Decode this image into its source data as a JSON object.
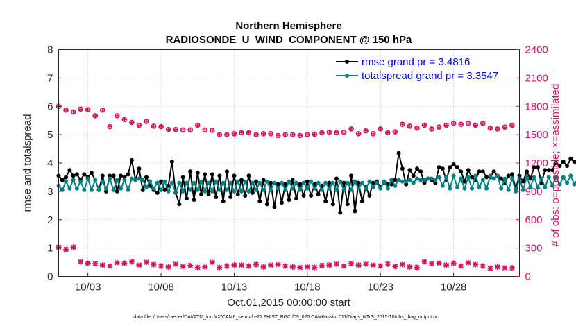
{
  "chart_data": {
    "type": "line",
    "title": "Northern Hemisphere",
    "subtitle": "RADIOSONDE_U_WIND_COMPONENT @ 150 hPa",
    "xlabel": "Oct.01,2015 00:00:00 start",
    "ylabel_left": "rmse and totalspread",
    "ylabel_right": "# of obs: o=possible; ×=assimilated",
    "footnote": "data file: /Users/raeder/DAI/ATM_forcXX/CAM6_setup/f.e21.FHIST_BGC.f09_025.CAM6assim.011/Diags_NTrS_2015-10/obs_diag_output.nc",
    "xlim": [
      1.0,
      32.5
    ],
    "ylim_left": [
      0,
      8
    ],
    "ylim_right": [
      0,
      2400
    ],
    "x_ticks": [
      3,
      8,
      13,
      18,
      23,
      28
    ],
    "x_tick_labels": [
      "10/03",
      "10/08",
      "10/13",
      "10/18",
      "10/23",
      "10/28"
    ],
    "y_ticks_left": [
      "0",
      "1",
      "2",
      "3",
      "4",
      "5",
      "6",
      "7",
      "8"
    ],
    "y_ticks_right": [
      "0",
      "300",
      "600",
      "900",
      "1200",
      "1500",
      "1800",
      "2100",
      "2400"
    ],
    "x_start": 1.0,
    "x_step": 0.25,
    "series": [
      {
        "name": "rmse grand pr = 3.4816",
        "axis": "left",
        "color": "#000000",
        "values": [
          3.55,
          3.4,
          3.5,
          3.75,
          3.55,
          3.6,
          3.4,
          3.6,
          3.5,
          3.65,
          3.4,
          3.05,
          3.55,
          3.0,
          3.55,
          3.55,
          3.0,
          3.55,
          3.5,
          3.6,
          4.1,
          3.4,
          3.8,
          3.05,
          3.5,
          3.2,
          3.05,
          2.95,
          3.35,
          3.05,
          3.2,
          4.05,
          2.95,
          2.55,
          3.5,
          2.75,
          3.7,
          2.7,
          3.65,
          2.9,
          3.6,
          2.9,
          3.6,
          2.8,
          3.55,
          2.65,
          3.7,
          2.8,
          3.55,
          2.9,
          3.4,
          2.85,
          3.55,
          2.95,
          3.35,
          2.65,
          3.4,
          2.55,
          3.3,
          2.45,
          3.25,
          2.6,
          3.25,
          2.7,
          3.4,
          2.75,
          3.25,
          2.85,
          3.35,
          2.85,
          3.25,
          2.9,
          3.2,
          2.65,
          3.3,
          2.55,
          3.45,
          2.25,
          3.3,
          2.55,
          3.55,
          2.3,
          3.3,
          2.65,
          3.15,
          2.85,
          3.3,
          3.35,
          3.15,
          3.3,
          3.25,
          3.25,
          3.4,
          4.35,
          3.8,
          3.25,
          3.75,
          3.55,
          3.8,
          3.7,
          3.3,
          3.45,
          3.4,
          3.3,
          3.85,
          3.8,
          3.4,
          3.85,
          3.95,
          3.85,
          3.7,
          3.35,
          3.75,
          3.5,
          3.4,
          3.7,
          3.7,
          3.5,
          3.5,
          3.7,
          3.55,
          3.45,
          3.3,
          3.55,
          3.6,
          3.1,
          3.55,
          3.35,
          3.7,
          3.45,
          3.85,
          3.85,
          3.3,
          3.75,
          3.75,
          3.75,
          4.0,
          3.9,
          4.05,
          3.9,
          4.15,
          4.05,
          3.95
        ]
      },
      {
        "name": "totalspread grand pr = 3.3547",
        "axis": "left",
        "color": "#008080",
        "values": [
          3.2,
          3.05,
          3.35,
          3.1,
          3.4,
          3.1,
          3.35,
          3.05,
          3.45,
          3.05,
          3.4,
          3.05,
          3.35,
          3.1,
          3.45,
          3.05,
          3.4,
          3.1,
          3.4,
          3.05,
          3.45,
          3.4,
          3.45,
          3.4,
          3.15,
          3.35,
          3.1,
          3.3,
          3.05,
          3.35,
          3.0,
          3.3,
          2.95,
          3.3,
          3.0,
          3.3,
          3.05,
          3.3,
          3.05,
          3.35,
          3.0,
          3.3,
          3.0,
          3.35,
          3.05,
          3.3,
          3.05,
          3.3,
          3.0,
          3.35,
          3.0,
          3.35,
          3.0,
          3.3,
          3.05,
          3.3,
          3.05,
          3.35,
          3.05,
          3.3,
          3.1,
          3.3,
          3.05,
          3.35,
          3.1,
          3.3,
          3.05,
          3.3,
          3.1,
          3.35,
          3.1,
          3.3,
          3.05,
          3.3,
          3.1,
          3.3,
          3.05,
          3.35,
          3.05,
          3.3,
          3.05,
          3.35,
          3.1,
          3.3,
          3.1,
          3.35,
          3.15,
          3.3,
          3.1,
          3.35,
          3.1,
          3.4,
          3.2,
          3.4,
          3.35,
          3.35,
          3.4,
          3.3,
          3.45,
          3.4,
          3.4,
          3.45,
          3.45,
          3.4,
          3.5,
          3.2,
          3.5,
          3.1,
          3.55,
          3.15,
          3.45,
          3.1,
          3.5,
          3.1,
          3.55,
          3.15,
          3.4,
          3.1,
          3.55,
          3.45,
          3.55,
          3.1,
          3.45,
          3.05,
          3.45,
          3.0,
          3.45,
          3.05,
          3.5,
          3.15,
          3.5,
          3.15,
          3.45,
          3.15,
          3.5,
          3.2,
          3.5,
          3.25,
          3.5,
          3.3,
          3.55,
          3.25,
          3.45
        ]
      },
      {
        "name": "possible",
        "axis": "right",
        "marker": "o",
        "color": "#d6135a",
        "x": [
          1.0,
          1.5,
          2.0,
          2.5,
          3.0,
          3.5,
          4.0,
          4.5,
          5.0,
          5.5,
          6.0,
          6.5,
          7.0,
          7.5,
          8.0,
          8.5,
          9.0,
          9.5,
          10.0,
          10.5,
          11.0,
          11.5,
          12.0,
          12.5,
          13.0,
          13.5,
          14.0,
          14.5,
          15.0,
          15.5,
          16.0,
          16.5,
          17.0,
          17.5,
          18.0,
          18.5,
          19.0,
          19.5,
          20.0,
          20.5,
          21.0,
          21.5,
          22.0,
          22.5,
          23.0,
          23.5,
          24.0,
          24.5,
          25.0,
          25.5,
          26.0,
          26.5,
          27.0,
          27.5,
          28.0,
          28.5,
          29.0,
          29.5,
          30.0,
          30.5,
          31.0,
          31.5,
          32.0
        ],
        "values": [
          1800,
          1760,
          1740,
          1770,
          1765,
          1700,
          1760,
          1585,
          1700,
          1660,
          1630,
          1600,
          1640,
          1590,
          1585,
          1555,
          1555,
          1550,
          1550,
          1600,
          1550,
          1545,
          1500,
          1500,
          1510,
          1520,
          1520,
          1500,
          1510,
          1510,
          1490,
          1500,
          1500,
          1490,
          1500,
          1505,
          1520,
          1525,
          1520,
          1525,
          1560,
          1510,
          1540,
          1510,
          1560,
          1520,
          1530,
          1610,
          1590,
          1570,
          1600,
          1560,
          1580,
          1600,
          1620,
          1610,
          1620,
          1600,
          1620,
          1570,
          1560,
          1580,
          1600
        ]
      },
      {
        "name": "assimilated",
        "axis": "right",
        "marker": "x",
        "color": "#d6135a",
        "x": [
          1.0,
          1.5,
          2.0,
          2.5,
          3.0,
          3.5,
          4.0,
          4.5,
          5.0,
          5.5,
          6.0,
          6.5,
          7.0,
          7.5,
          8.0,
          8.5,
          9.0,
          9.5,
          10.0,
          10.5,
          11.0,
          11.5,
          12.0,
          12.5,
          13.0,
          13.5,
          14.0,
          14.5,
          15.0,
          15.5,
          16.0,
          16.5,
          17.0,
          17.5,
          18.0,
          18.5,
          19.0,
          19.5,
          20.0,
          20.5,
          21.0,
          21.5,
          22.0,
          22.5,
          23.0,
          23.5,
          24.0,
          24.5,
          25.0,
          25.5,
          26.0,
          26.5,
          27.0,
          27.5,
          28.0,
          28.5,
          29.0,
          29.5,
          30.0,
          30.5,
          31.0,
          31.5,
          32.0
        ],
        "values": [
          310,
          285,
          310,
          155,
          140,
          135,
          120,
          110,
          145,
          140,
          155,
          120,
          150,
          125,
          110,
          100,
          130,
          105,
          115,
          95,
          100,
          150,
          95,
          110,
          120,
          120,
          110,
          125,
          100,
          120,
          125,
          110,
          100,
          95,
          100,
          95,
          115,
          120,
          130,
          110,
          135,
          120,
          130,
          120,
          110,
          130,
          105,
          125,
          100,
          95,
          155,
          135,
          140,
          120,
          140,
          110,
          145,
          125,
          110,
          85,
          100,
          90,
          90
        ]
      }
    ],
    "legend": [
      "rmse grand pr = 3.4816",
      "totalspread grand pr = 3.3547"
    ],
    "legend_location": "top-right",
    "grid": true
  }
}
